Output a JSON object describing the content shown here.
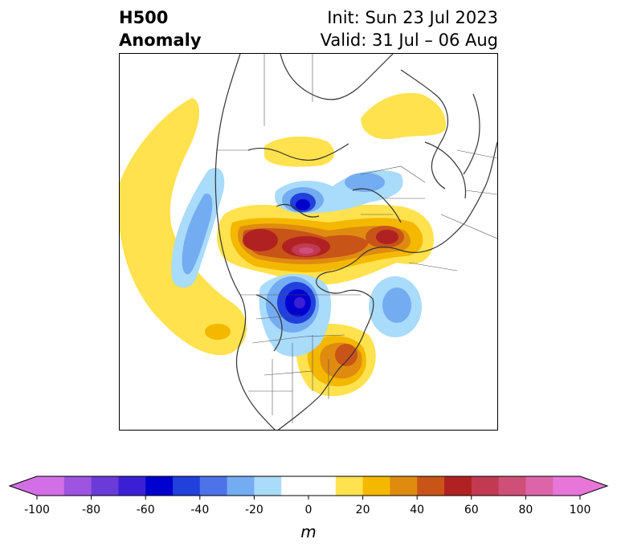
{
  "title": {
    "left_line1": "H500",
    "left_line2": "Anomaly",
    "right_line1": "Init: Sun 23 Jul 2023",
    "right_line2": "Valid: 31 Jul – 06 Aug"
  },
  "colorbar": {
    "unit": "m",
    "ticks": [
      "-100",
      "-80",
      "-60",
      "-40",
      "-20",
      "0",
      "20",
      "40",
      "60",
      "80",
      "100"
    ],
    "bins": [
      {
        "min": -100,
        "max": -90,
        "color": "#d36fe6"
      },
      {
        "min": -90,
        "max": -80,
        "color": "#9d54e0"
      },
      {
        "min": -80,
        "max": -70,
        "color": "#6a3bd9"
      },
      {
        "min": -70,
        "max": -60,
        "color": "#3b1fd4"
      },
      {
        "min": -60,
        "max": -50,
        "color": "#0000cf"
      },
      {
        "min": -50,
        "max": -40,
        "color": "#2140dc"
      },
      {
        "min": -40,
        "max": -30,
        "color": "#4d73e8"
      },
      {
        "min": -30,
        "max": -20,
        "color": "#74acf2"
      },
      {
        "min": -20,
        "max": -10,
        "color": "#a9dbfb"
      },
      {
        "min": -10,
        "max": 0,
        "color": "#ffffff"
      },
      {
        "min": 0,
        "max": 10,
        "color": "#ffffff"
      },
      {
        "min": 10,
        "max": 20,
        "color": "#ffe24d"
      },
      {
        "min": 20,
        "max": 30,
        "color": "#f4b800"
      },
      {
        "min": 30,
        "max": 40,
        "color": "#df8b10"
      },
      {
        "min": 40,
        "max": 50,
        "color": "#c85418"
      },
      {
        "min": 50,
        "max": 60,
        "color": "#b02222"
      },
      {
        "min": 60,
        "max": 70,
        "color": "#c23a52"
      },
      {
        "min": 70,
        "max": 80,
        "color": "#d04f78"
      },
      {
        "min": 80,
        "max": 90,
        "color": "#dd64a8"
      },
      {
        "min": 90,
        "max": 100,
        "color": "#e876d8"
      }
    ],
    "under_color": "#d36fe6",
    "over_color": "#e876d8"
  }
}
